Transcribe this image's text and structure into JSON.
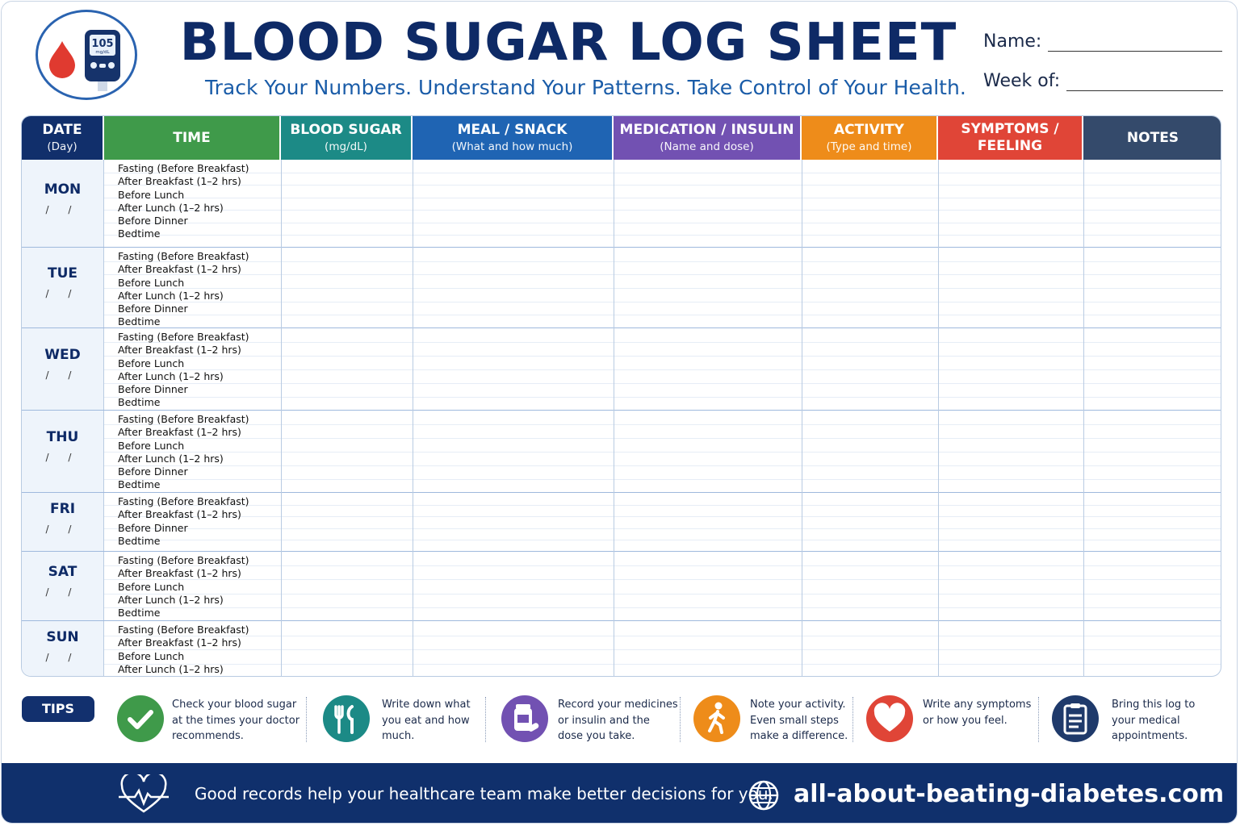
{
  "header": {
    "title": "BLOOD SUGAR LOG SHEET",
    "subtitle": "Track Your Numbers. Understand Your Patterns. Take Control of Your Health.",
    "name_label": "Name:",
    "week_label": "Week of:",
    "meter_reading": "105",
    "meter_unit": "mg/dL"
  },
  "columns": [
    {
      "title": "DATE",
      "sub": "(Day)",
      "color": "#112f6b"
    },
    {
      "title": "TIME",
      "sub": "",
      "color": "#3f9a4a"
    },
    {
      "title": "BLOOD SUGAR",
      "sub": "(mg/dL)",
      "color": "#1c8a86"
    },
    {
      "title": "MEAL / SNACK",
      "sub": "(What and how much)",
      "color": "#1f64b3"
    },
    {
      "title": "MEDICATION / INSULIN",
      "sub": "(Name and dose)",
      "color": "#7251b2"
    },
    {
      "title": "ACTIVITY",
      "sub": "(Type and time)",
      "color": "#ee8c1a"
    },
    {
      "title": "SYMPTOMS /",
      "sub": "FEELING",
      "color": "#e04537"
    },
    {
      "title": "NOTES",
      "sub": "",
      "color": "#344a6b"
    }
  ],
  "days": [
    {
      "name": "MON",
      "date": "/ /",
      "times": [
        "Fasting (Before Breakfast)",
        "After Breakfast (1–2 hrs)",
        "Before Lunch",
        "After Lunch (1–2 hrs)",
        "Before Dinner",
        "Bedtime"
      ]
    },
    {
      "name": "TUE",
      "date": "/ /",
      "times": [
        "Fasting (Before Breakfast)",
        "After Breakfast (1–2 hrs)",
        "Before Lunch",
        "After Lunch (1–2 hrs)",
        "Before Dinner",
        "Bedtime"
      ]
    },
    {
      "name": "WED",
      "date": "/ /",
      "times": [
        "Fasting (Before Breakfast)",
        "After Breakfast (1–2 hrs)",
        "Before Lunch",
        "After Lunch (1–2 hrs)",
        "Before Dinner",
        "Bedtime"
      ]
    },
    {
      "name": "THU",
      "date": "/ /",
      "times": [
        "Fasting (Before Breakfast)",
        "After Breakfast (1–2 hrs)",
        "Before Lunch",
        "After Lunch (1–2 hrs)",
        "Before Dinner",
        "Bedtime"
      ]
    },
    {
      "name": "FRI",
      "date": "/ /",
      "times": [
        "Fasting (Before Breakfast)",
        "After Breakfast (1–2 hrs)",
        "Before Dinner",
        "Bedtime"
      ]
    },
    {
      "name": "SAT",
      "date": "/ /",
      "times": [
        "Fasting (Before Breakfast)",
        "After Breakfast (1–2 hrs)",
        "Before Lunch",
        "After Lunch (1–2 hrs)",
        "Bedtime"
      ]
    },
    {
      "name": "SUN",
      "date": "/ /",
      "times": [
        "Fasting (Before Breakfast)",
        "After Breakfast (1–2 hrs)",
        "Before Lunch",
        "After Lunch (1–2 hrs)"
      ]
    }
  ],
  "tips": {
    "label": "TIPS",
    "items": [
      {
        "icon": "checkmark-icon",
        "color": "#3f9a4a",
        "lines": [
          "Check your blood sugar",
          "at the times your doctor",
          "recommends."
        ]
      },
      {
        "icon": "fork-knife-icon",
        "color": "#1c8a86",
        "lines": [
          "Write down what",
          "you eat and how",
          "much."
        ]
      },
      {
        "icon": "medicine-bottle-icon",
        "color": "#7251b2",
        "lines": [
          "Record your medicines",
          "or insulin and the",
          "dose you take."
        ]
      },
      {
        "icon": "walking-person-icon",
        "color": "#ee8c1a",
        "lines": [
          "Note your activity.",
          "Even small steps",
          "make a difference."
        ]
      },
      {
        "icon": "heart-icon",
        "color": "#e04537",
        "lines": [
          "Write any symptoms",
          "or how you feel."
        ]
      },
      {
        "icon": "clipboard-icon",
        "color": "#1f3a6b",
        "lines": [
          "Bring this log to",
          "your medical",
          "appointments."
        ]
      }
    ]
  },
  "footer": {
    "message": "Good records help your healthcare team make better decisions for you.",
    "url": "all-about-beating-diabetes.com"
  }
}
